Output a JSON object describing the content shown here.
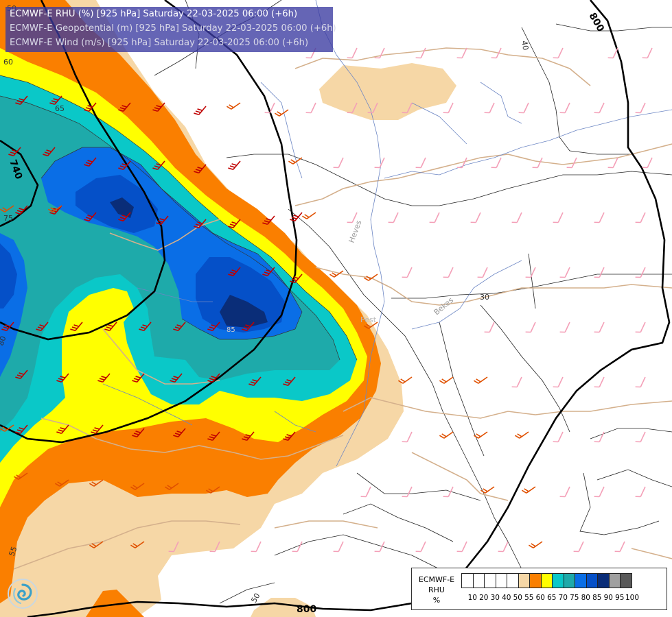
{
  "title_lines": [
    "ECMWF-E RHU (%) [925 hPa] Saturday 22-03-2025 06:00 (+6h)",
    "ECMWF-E Geopotential (m) [925 hPa] Saturday 22-03-2025 06:00 (+6h)",
    "ECMWF-E Wind (m/s) [925 hPa] Saturday 22-03-2025 06:00 (+6h)"
  ],
  "legend": {
    "title_lines": [
      "ECMWF-E",
      "RHU",
      "%"
    ],
    "ticks": [
      "10",
      "20",
      "30",
      "40",
      "50",
      "55",
      "60",
      "65",
      "70",
      "75",
      "80",
      "85",
      "90",
      "95",
      "100"
    ],
    "colors": [
      "#ffffff",
      "#ffffff",
      "#ffffff",
      "#ffffff",
      "#ffffff",
      "#f6d7a6",
      "#fa7f00",
      "#ffff00",
      "#0ac8c8",
      "#1eaaaa",
      "#0a6ee6",
      "#0550c8",
      "#0a2d78",
      "#a0a0a0",
      "#5a5a5a"
    ]
  },
  "geopotential_contours": [
    {
      "label": "740",
      "value": 740
    },
    {
      "label": "800",
      "value": 800
    }
  ],
  "rhu_contour_labels": [
    "50",
    "60",
    "65",
    "75",
    "80",
    "85",
    "55",
    "40",
    "30"
  ],
  "place_labels": [
    "Heves",
    "Pest",
    "Bekes"
  ],
  "colors": {
    "rhu_55": "#f6d7a6",
    "rhu_60": "#fa7f00",
    "rhu_65": "#ffff00",
    "rhu_70": "#0ac8c8",
    "rhu_75": "#1eaaaa",
    "rhu_80": "#0a6ee6",
    "rhu_85": "#0550c8",
    "rhu_90": "#0a2d78",
    "barb_strong": "#c00000",
    "barb_medium": "#e05000",
    "barb_light": "#f4a0b8",
    "border": "#d4b08c",
    "river": "#6c86c4",
    "admin": "#222222"
  },
  "logo": "ecmwf-swirl-icon"
}
